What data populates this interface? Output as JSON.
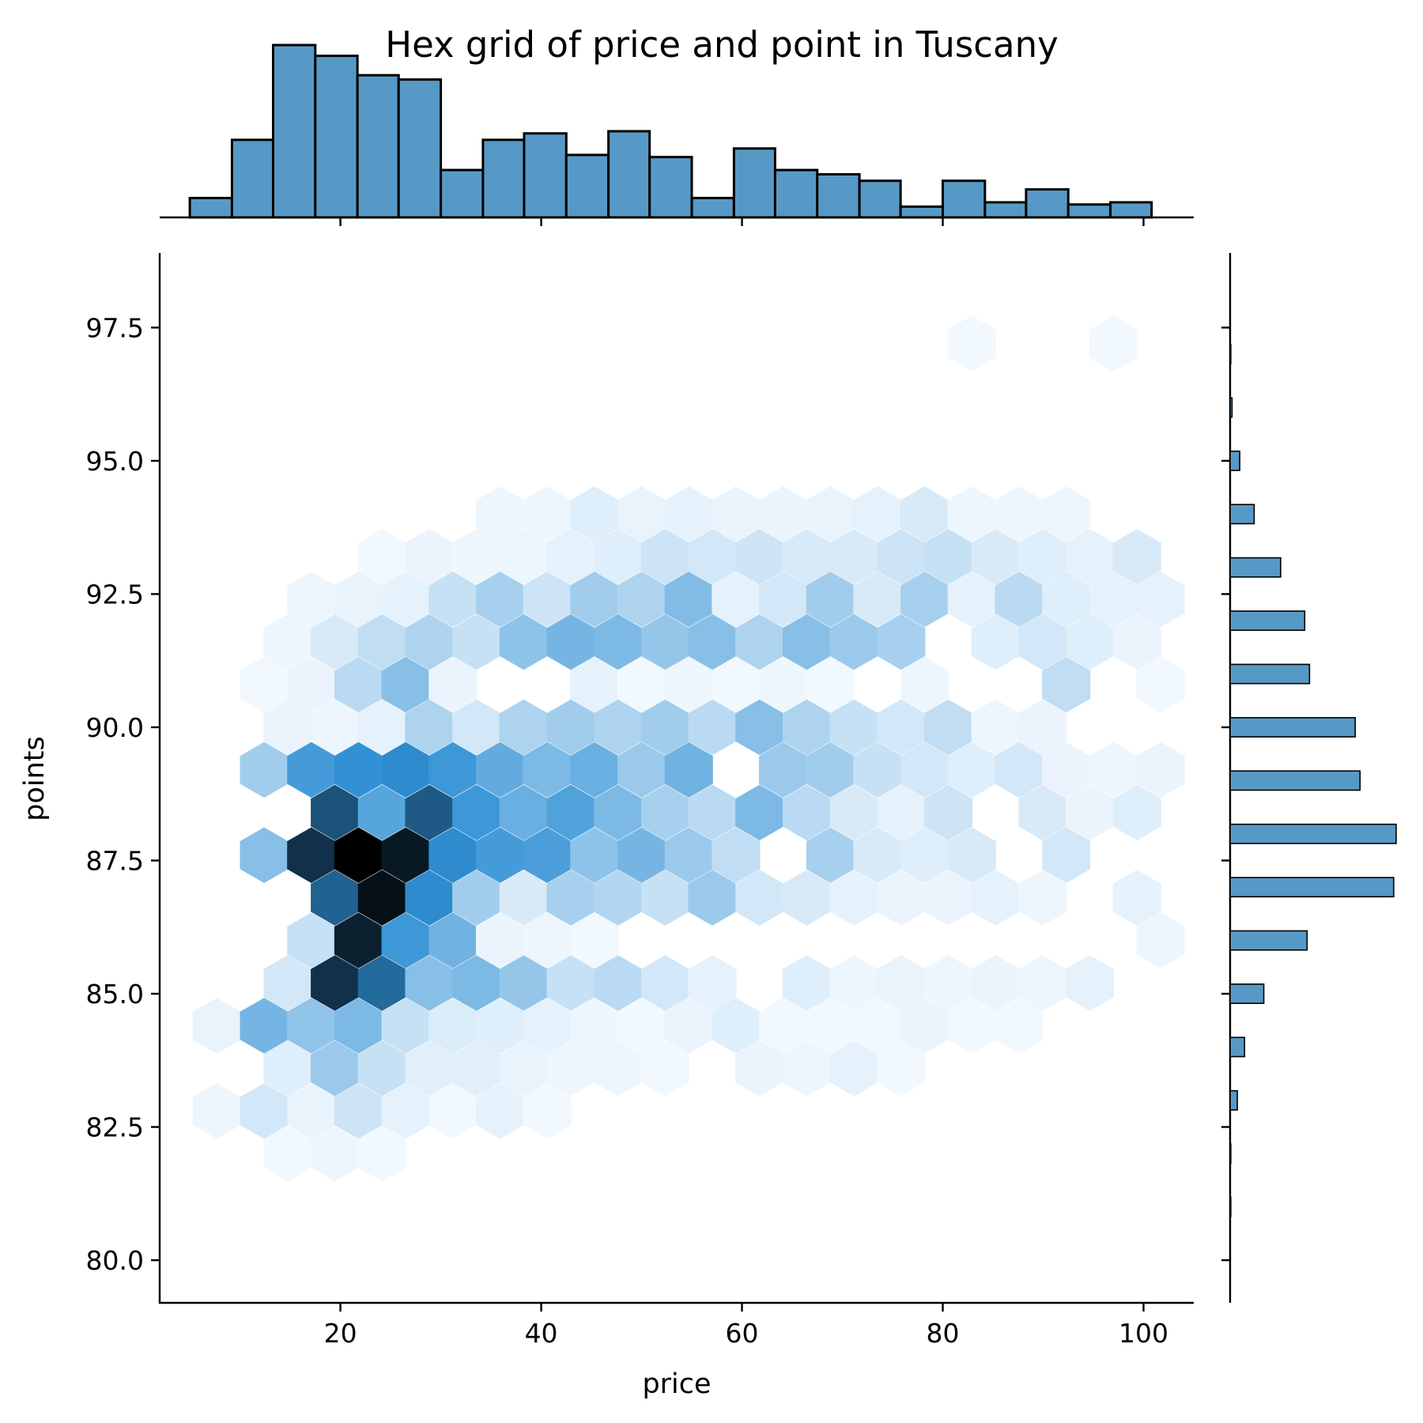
{
  "chart_data": {
    "type": "hexbin",
    "title": "Hex grid of price and point in Tuscany",
    "xlabel": "price",
    "ylabel": "points",
    "xlim": [
      2,
      105
    ],
    "ylim": [
      79.2,
      98.9
    ],
    "xticks": [
      "20",
      "40",
      "60",
      "80",
      "100"
    ],
    "yticks": [
      "80.0",
      "82.5",
      "85.0",
      "87.5",
      "90.0",
      "92.5",
      "95.0",
      "97.5"
    ],
    "colormap": {
      "low": "#f7fbff",
      "mid": "#2f8fd4",
      "high": "#000000"
    },
    "bar_color": "#5799c6",
    "hex_grid": {
      "x_centers_even": [
        7.7,
        12.4,
        17.1,
        21.8,
        26.5,
        31.2,
        35.9,
        40.6,
        45.3,
        50.0,
        54.7,
        59.4,
        64.1,
        68.8,
        73.5,
        78.2,
        82.9,
        87.6,
        92.3,
        97.0,
        101.7
      ],
      "y_centers": [
        81.2,
        82.0,
        82.8,
        83.6,
        84.4,
        85.2,
        86.0,
        86.8,
        87.6,
        88.4,
        89.2,
        90.0,
        90.8,
        91.6,
        92.4,
        93.2,
        94.0,
        94.8,
        95.6,
        96.4,
        97.2
      ],
      "odd_row_x_shift": 2.35,
      "note_levels": "density level 0-1 per cell"
    },
    "hex_cells": [
      [
        0.0,
        0.0,
        0.0,
        0.0,
        0.0,
        0.0,
        0.0,
        0.0,
        0.0,
        0.0,
        0.0,
        0.0,
        0.0,
        0.0,
        0.0,
        0.0,
        0.0,
        0.0,
        0.0,
        0.0,
        0.0
      ],
      [
        0.0,
        0.02,
        0.03,
        0.02,
        0.0,
        0.0,
        0.0,
        0.0,
        0.0,
        0.0,
        0.0,
        0.0,
        0.0,
        0.0,
        0.0,
        0.0,
        0.0,
        0.0,
        0.0,
        0.0,
        0.0
      ],
      [
        0.03,
        0.12,
        0.05,
        0.14,
        0.06,
        0.02,
        0.06,
        0.02,
        0.0,
        0.0,
        0.0,
        0.0,
        0.0,
        0.0,
        0.0,
        0.0,
        0.0,
        0.0,
        0.0,
        0.0,
        0.0
      ],
      [
        0.0,
        0.08,
        0.3,
        0.16,
        0.07,
        0.07,
        0.05,
        0.03,
        0.03,
        0.02,
        0.0,
        0.04,
        0.03,
        0.06,
        0.02,
        0.0,
        0.0,
        0.0,
        0.0,
        0.0,
        0.0
      ],
      [
        0.05,
        0.42,
        0.33,
        0.4,
        0.16,
        0.09,
        0.08,
        0.06,
        0.03,
        0.02,
        0.04,
        0.08,
        0.02,
        0.02,
        0.02,
        0.04,
        0.02,
        0.02,
        0.0,
        0.0,
        0.0
      ],
      [
        0.0,
        0.12,
        0.88,
        0.74,
        0.36,
        0.4,
        0.32,
        0.16,
        0.2,
        0.12,
        0.06,
        0.0,
        0.08,
        0.03,
        0.05,
        0.03,
        0.04,
        0.03,
        0.06,
        0.0,
        0.0
      ],
      [
        0.0,
        0.0,
        0.16,
        0.92,
        0.6,
        0.44,
        0.04,
        0.03,
        0.02,
        0.0,
        0.0,
        0.0,
        0.0,
        0.0,
        0.0,
        0.0,
        0.0,
        0.0,
        0.0,
        0.0,
        0.03
      ],
      [
        0.0,
        0.0,
        0.76,
        0.96,
        0.66,
        0.28,
        0.1,
        0.26,
        0.22,
        0.16,
        0.3,
        0.12,
        0.1,
        0.06,
        0.04,
        0.04,
        0.06,
        0.03,
        0.0,
        0.06,
        0.0
      ],
      [
        0.0,
        0.36,
        0.88,
        1.0,
        0.94,
        0.66,
        0.58,
        0.56,
        0.34,
        0.42,
        0.3,
        0.18,
        0.0,
        0.26,
        0.1,
        0.08,
        0.1,
        0.0,
        0.12,
        0.0,
        0.0
      ],
      [
        0.0,
        0.0,
        0.8,
        0.52,
        0.78,
        0.6,
        0.46,
        0.54,
        0.4,
        0.26,
        0.2,
        0.4,
        0.2,
        0.1,
        0.06,
        0.14,
        0.0,
        0.1,
        0.04,
        0.08,
        0.0
      ],
      [
        0.0,
        0.28,
        0.58,
        0.64,
        0.66,
        0.6,
        0.48,
        0.4,
        0.46,
        0.3,
        0.44,
        0.0,
        0.3,
        0.28,
        0.16,
        0.12,
        0.08,
        0.12,
        0.04,
        0.03,
        0.04
      ],
      [
        0.0,
        0.04,
        0.03,
        0.06,
        0.24,
        0.12,
        0.24,
        0.28,
        0.24,
        0.28,
        0.2,
        0.36,
        0.24,
        0.16,
        0.12,
        0.18,
        0.03,
        0.04,
        0.0,
        0.0,
        0.0
      ],
      [
        0.0,
        0.02,
        0.04,
        0.2,
        0.36,
        0.04,
        0.0,
        0.0,
        0.06,
        0.02,
        0.03,
        0.02,
        0.03,
        0.02,
        0.0,
        0.03,
        0.0,
        0.0,
        0.18,
        0.0,
        0.02
      ],
      [
        0.0,
        0.03,
        0.1,
        0.18,
        0.24,
        0.16,
        0.34,
        0.42,
        0.4,
        0.32,
        0.36,
        0.24,
        0.36,
        0.3,
        0.26,
        0.0,
        0.08,
        0.12,
        0.08,
        0.04,
        0.0
      ],
      [
        0.0,
        0.0,
        0.03,
        0.05,
        0.06,
        0.16,
        0.26,
        0.14,
        0.28,
        0.24,
        0.38,
        0.06,
        0.12,
        0.28,
        0.1,
        0.26,
        0.06,
        0.2,
        0.08,
        0.06,
        0.06
      ],
      [
        0.0,
        0.0,
        0.0,
        0.02,
        0.04,
        0.03,
        0.03,
        0.06,
        0.08,
        0.14,
        0.12,
        0.14,
        0.1,
        0.1,
        0.14,
        0.16,
        0.1,
        0.08,
        0.06,
        0.1,
        0.0
      ],
      [
        0.0,
        0.0,
        0.0,
        0.0,
        0.0,
        0.0,
        0.03,
        0.03,
        0.08,
        0.05,
        0.06,
        0.04,
        0.04,
        0.05,
        0.06,
        0.1,
        0.03,
        0.03,
        0.03,
        0.0,
        0.0
      ],
      [
        0.0,
        0.0,
        0.0,
        0.0,
        0.0,
        0.0,
        0.0,
        0.0,
        0.0,
        0.0,
        0.0,
        0.0,
        0.0,
        0.0,
        0.0,
        0.0,
        0.0,
        0.0,
        0.0,
        0.0,
        0.0
      ],
      [
        0.0,
        0.0,
        0.0,
        0.0,
        0.0,
        0.0,
        0.0,
        0.0,
        0.0,
        0.0,
        0.0,
        0.0,
        0.0,
        0.0,
        0.0,
        0.0,
        0.0,
        0.0,
        0.0,
        0.0,
        0.0
      ],
      [
        0.0,
        0.0,
        0.0,
        0.0,
        0.0,
        0.0,
        0.0,
        0.0,
        0.0,
        0.0,
        0.0,
        0.0,
        0.0,
        0.0,
        0.0,
        0.0,
        0.0,
        0.0,
        0.0,
        0.0,
        0.0
      ],
      [
        0.0,
        0.0,
        0.0,
        0.0,
        0.0,
        0.0,
        0.0,
        0.0,
        0.0,
        0.0,
        0.0,
        0.0,
        0.0,
        0.0,
        0.0,
        0.0,
        0.02,
        0.0,
        0.0,
        0.02,
        0.0
      ]
    ],
    "x_hist": {
      "bin_edges": [
        5,
        9.2,
        13.3,
        17.5,
        21.7,
        25.8,
        30,
        34.2,
        38.3,
        42.5,
        46.7,
        50.8,
        55,
        59.2,
        63.3,
        67.5,
        71.7,
        75.8,
        80,
        84.2,
        88.3,
        92.5,
        96.7,
        100.8
      ],
      "values": [
        9,
        36,
        80,
        75,
        66,
        64,
        22,
        36,
        39,
        29,
        40,
        28,
        9,
        32,
        22,
        20,
        17,
        5,
        17,
        7,
        13,
        6,
        7
      ]
    },
    "y_hist": {
      "bin_centers": [
        97.0,
        96.0,
        95.0,
        94.0,
        93.0,
        92.0,
        91.0,
        90.0,
        89.0,
        88.0,
        87.0,
        86.0,
        85.0,
        84.0,
        83.0,
        82.0,
        81.0
      ],
      "values": [
        0.3,
        0.8,
        4,
        10,
        21,
        31,
        33,
        52,
        54,
        69,
        68,
        32,
        14,
        6,
        3,
        0.3,
        0.3
      ]
    }
  }
}
